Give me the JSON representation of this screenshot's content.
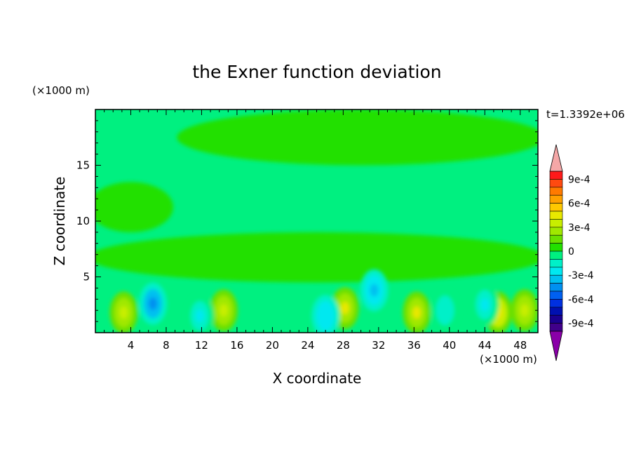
{
  "chart_data": {
    "type": "heatmap",
    "title": "the Exner function deviation",
    "xlabel": "X coordinate",
    "ylabel": "Z coordinate",
    "x_unit_label": "(×1000 m)",
    "y_unit_label": "(×1000 m)",
    "time_label": "t=1.3392e+06",
    "xlim": [
      0,
      50
    ],
    "ylim": [
      0,
      20
    ],
    "x_ticks": [
      4,
      8,
      12,
      16,
      20,
      24,
      28,
      32,
      36,
      40,
      44,
      48
    ],
    "y_ticks": [
      5,
      10,
      15
    ],
    "colorbar": {
      "tick_labels": [
        "9e-4",
        "6e-4",
        "3e-4",
        "0",
        "-3e-4",
        "-6e-4",
        "-9e-4"
      ],
      "tick_values": [
        0.0009,
        0.0006,
        0.0003,
        0,
        -0.0003,
        -0.0006,
        -0.0009
      ],
      "levels": [
        {
          "lo": 0.001,
          "hi": null,
          "color": "#f4a7a7"
        },
        {
          "lo": 0.0009,
          "hi": 0.001,
          "color": "#ff1a1a"
        },
        {
          "lo": 0.0008,
          "hi": 0.0009,
          "color": "#ff4a10"
        },
        {
          "lo": 0.0007,
          "hi": 0.0008,
          "color": "#ff7a00"
        },
        {
          "lo": 0.0006,
          "hi": 0.0007,
          "color": "#ffa000"
        },
        {
          "lo": 0.0005,
          "hi": 0.0006,
          "color": "#ffc800"
        },
        {
          "lo": 0.0004,
          "hi": 0.0005,
          "color": "#e8e800"
        },
        {
          "lo": 0.0003,
          "hi": 0.0004,
          "color": "#c8ee00"
        },
        {
          "lo": 0.0002,
          "hi": 0.0003,
          "color": "#a0e800"
        },
        {
          "lo": 0.0001,
          "hi": 0.0002,
          "color": "#6ae000"
        },
        {
          "lo": 0,
          "hi": 0.0001,
          "color": "#22e000"
        },
        {
          "lo": -0.0001,
          "hi": 0,
          "color": "#00f080"
        },
        {
          "lo": -0.0002,
          "hi": -0.0001,
          "color": "#00f0c8"
        },
        {
          "lo": -0.0003,
          "hi": -0.0002,
          "color": "#00e8f0"
        },
        {
          "lo": -0.0004,
          "hi": -0.0003,
          "color": "#00c0f0"
        },
        {
          "lo": -0.0005,
          "hi": -0.0004,
          "color": "#0090f0"
        },
        {
          "lo": -0.0006,
          "hi": -0.0005,
          "color": "#0060f0"
        },
        {
          "lo": -0.0007,
          "hi": -0.0006,
          "color": "#0030e0"
        },
        {
          "lo": -0.0008,
          "hi": -0.0007,
          "color": "#0010b0"
        },
        {
          "lo": -0.0009,
          "hi": -0.0008,
          "color": "#1a0090"
        },
        {
          "lo": -0.001,
          "hi": -0.0009,
          "color": "#40008a"
        },
        {
          "lo": null,
          "hi": -0.001,
          "color": "#8a00a8"
        }
      ]
    },
    "field_approx": {
      "background_value": -5e-05,
      "regions_positive_0_to_1e-4": [
        {
          "x": [
            0,
            50
          ],
          "z": [
            4.5,
            9
          ]
        },
        {
          "x": [
            10,
            50
          ],
          "z": [
            15,
            20
          ]
        },
        {
          "x": [
            0,
            8
          ],
          "z": [
            9,
            13.5
          ]
        }
      ],
      "warm_anomalies": [
        {
          "x": 3.2,
          "z": 1.8,
          "value": 0.00035
        },
        {
          "x": 14.5,
          "z": 2.0,
          "value": 0.0003
        },
        {
          "x": 28.2,
          "z": 2.2,
          "value": 0.0004
        },
        {
          "x": 36.3,
          "z": 1.8,
          "value": 0.0004
        },
        {
          "x": 45.5,
          "z": 1.8,
          "value": 0.00045
        },
        {
          "x": 48.5,
          "z": 2.0,
          "value": 0.00035
        }
      ],
      "cold_anomalies": [
        {
          "x": 6.5,
          "z": 2.6,
          "value": -0.00045
        },
        {
          "x": 11.8,
          "z": 1.5,
          "value": -0.00025
        },
        {
          "x": 26.0,
          "z": 1.5,
          "value": -0.0003
        },
        {
          "x": 31.5,
          "z": 3.8,
          "value": -0.00035
        },
        {
          "x": 39.5,
          "z": 2.0,
          "value": -0.0002
        },
        {
          "x": 44.0,
          "z": 2.5,
          "value": -0.00025
        }
      ]
    }
  }
}
